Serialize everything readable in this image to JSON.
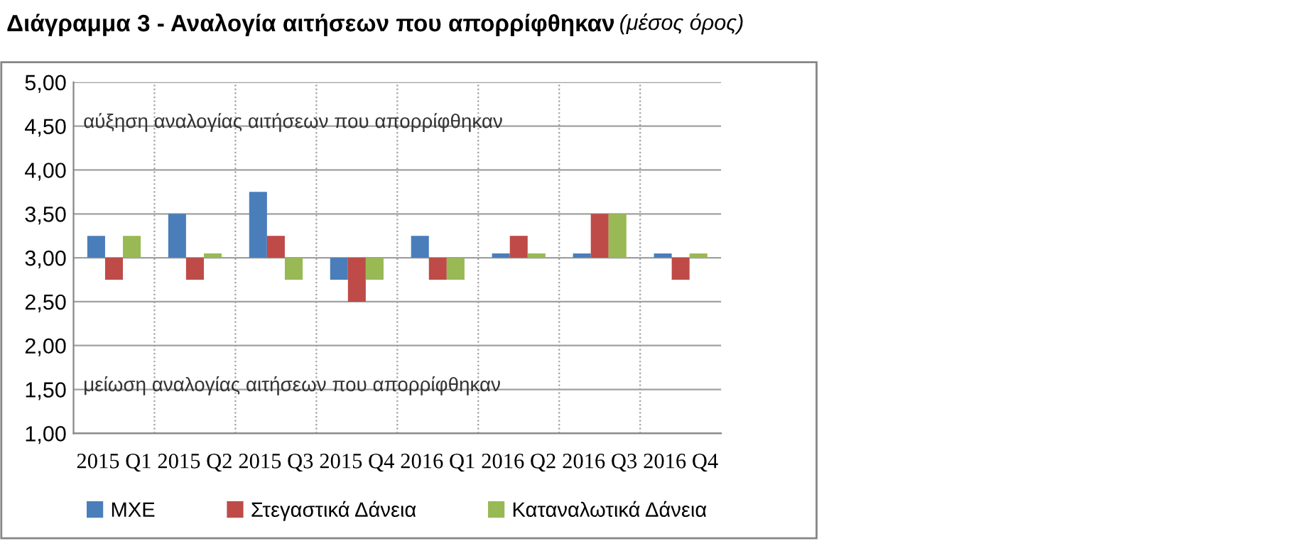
{
  "chart_data": {
    "type": "bar",
    "title": "Διάγραμμα 3 - Αναλογία αιτήσεων που απορρίφθηκαν",
    "subtitle": "(μέσος όρος)",
    "categories": [
      "2015 Q1",
      "2015 Q2",
      "2015 Q3",
      "2015 Q4",
      "2016 Q1",
      "2016 Q2",
      "2016 Q3",
      "2016 Q4"
    ],
    "series": [
      {
        "name": "ΜΧΕ",
        "color": "#4a7ebb",
        "base": [
          3,
          3,
          3,
          3,
          3,
          3,
          3,
          3
        ],
        "values": [
          0.25,
          0.5,
          0.75,
          -0.25,
          0.25,
          0.05,
          0.05,
          0.05
        ]
      },
      {
        "name": "Στεγαστικά Δάνεια",
        "color": "#be4b48",
        "base": [
          3,
          3,
          3,
          3,
          3,
          3,
          3,
          3
        ],
        "values": [
          -0.25,
          -0.25,
          0.25,
          -0.5,
          -0.25,
          0.25,
          0.5,
          -0.25
        ]
      },
      {
        "name": "Καταναλωτικά Δάνεια",
        "color": "#98b954",
        "base": [
          3,
          3,
          3,
          3,
          3,
          3,
          3,
          3
        ],
        "values": [
          0.25,
          0.05,
          -0.25,
          -0.25,
          -0.25,
          0.05,
          0.5,
          0.05
        ]
      }
    ],
    "ylim": [
      1,
      5
    ],
    "yticks": [
      {
        "value": 1,
        "label": "1,00"
      },
      {
        "value": 1.5,
        "label": "1,50"
      },
      {
        "value": 2,
        "label": "2,00"
      },
      {
        "value": 2.5,
        "label": "2,50"
      },
      {
        "value": 3,
        "label": "3,00"
      },
      {
        "value": 3.5,
        "label": "3,50"
      },
      {
        "value": 4,
        "label": "4,00"
      },
      {
        "value": 4.5,
        "label": "4,50"
      },
      {
        "value": 5,
        "label": "5,00"
      }
    ],
    "annotations": [
      "αύξηση αναλογίας αιτήσεων που απορρίφθηκαν",
      "μείωση αναλογίας αιτήσεων που απορρίφθηκαν"
    ],
    "grid": true,
    "legend": "bottom"
  }
}
